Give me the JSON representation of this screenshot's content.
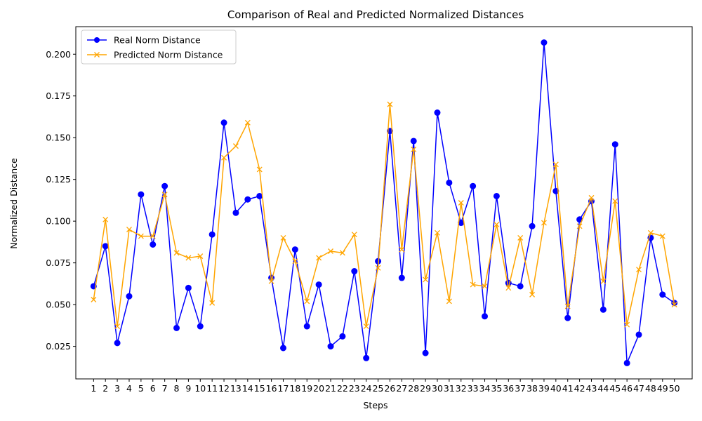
{
  "chart_data": {
    "type": "line",
    "title": "Comparison of Real and Predicted Normalized Distances",
    "xlabel": "Steps",
    "ylabel": "Normalized Distance",
    "x": [
      1,
      2,
      3,
      4,
      5,
      6,
      7,
      8,
      9,
      10,
      11,
      12,
      13,
      14,
      15,
      16,
      17,
      18,
      19,
      20,
      21,
      22,
      23,
      24,
      25,
      26,
      27,
      28,
      29,
      30,
      31,
      32,
      33,
      34,
      35,
      36,
      37,
      38,
      39,
      40,
      41,
      42,
      43,
      44,
      45,
      46,
      47,
      48,
      49,
      50
    ],
    "xtick_labels": [
      "1",
      "2",
      "3",
      "4",
      "5",
      "6",
      "7",
      "8",
      "9",
      "10",
      "11",
      "12",
      "13",
      "14",
      "15",
      "16",
      "17",
      "18",
      "19",
      "20",
      "21",
      "22",
      "23",
      "24",
      "25",
      "26",
      "27",
      "28",
      "29",
      "30",
      "31",
      "32",
      "33",
      "34",
      "35",
      "36",
      "37",
      "38",
      "39",
      "40",
      "41",
      "42",
      "43",
      "44",
      "45",
      "46",
      "47",
      "48",
      "49",
      "50"
    ],
    "yticks": [
      0.025,
      0.05,
      0.075,
      0.1,
      0.125,
      0.15,
      0.175,
      0.2
    ],
    "ytick_labels": [
      "0.025",
      "0.050",
      "0.075",
      "0.100",
      "0.125",
      "0.150",
      "0.175",
      "0.200"
    ],
    "ylim": [
      0.0055,
      0.2165
    ],
    "xlim": [
      -0.5,
      51.5
    ],
    "grid": false,
    "legend_position": "top-left",
    "series": [
      {
        "name": "Real Norm Distance",
        "color": "#0000ff",
        "marker": "circle",
        "values": [
          0.061,
          0.085,
          0.027,
          0.055,
          0.116,
          0.086,
          0.121,
          0.036,
          0.06,
          0.037,
          0.092,
          0.159,
          0.105,
          0.113,
          0.115,
          0.066,
          0.024,
          0.083,
          0.037,
          0.062,
          0.025,
          0.031,
          0.07,
          0.018,
          0.076,
          0.154,
          0.066,
          0.148,
          0.021,
          0.165,
          0.123,
          0.099,
          0.121,
          0.043,
          0.115,
          0.063,
          0.061,
          0.097,
          0.207,
          0.118,
          0.042,
          0.101,
          0.112,
          0.047,
          0.146,
          0.015,
          0.032,
          0.09,
          0.056,
          0.051
        ]
      },
      {
        "name": "Predicted Norm Distance",
        "color": "#ffa500",
        "marker": "x",
        "values": [
          0.053,
          0.101,
          0.037,
          0.095,
          0.091,
          0.091,
          0.116,
          0.081,
          0.078,
          0.079,
          0.051,
          0.138,
          0.145,
          0.159,
          0.131,
          0.064,
          0.09,
          0.076,
          0.052,
          0.078,
          0.082,
          0.081,
          0.092,
          0.037,
          0.072,
          0.17,
          0.083,
          0.143,
          0.065,
          0.093,
          0.052,
          0.111,
          0.062,
          0.061,
          0.098,
          0.06,
          0.09,
          0.056,
          0.099,
          0.134,
          0.049,
          0.097,
          0.114,
          0.064,
          0.112,
          0.038,
          0.071,
          0.093,
          0.091,
          0.05
        ]
      }
    ]
  }
}
